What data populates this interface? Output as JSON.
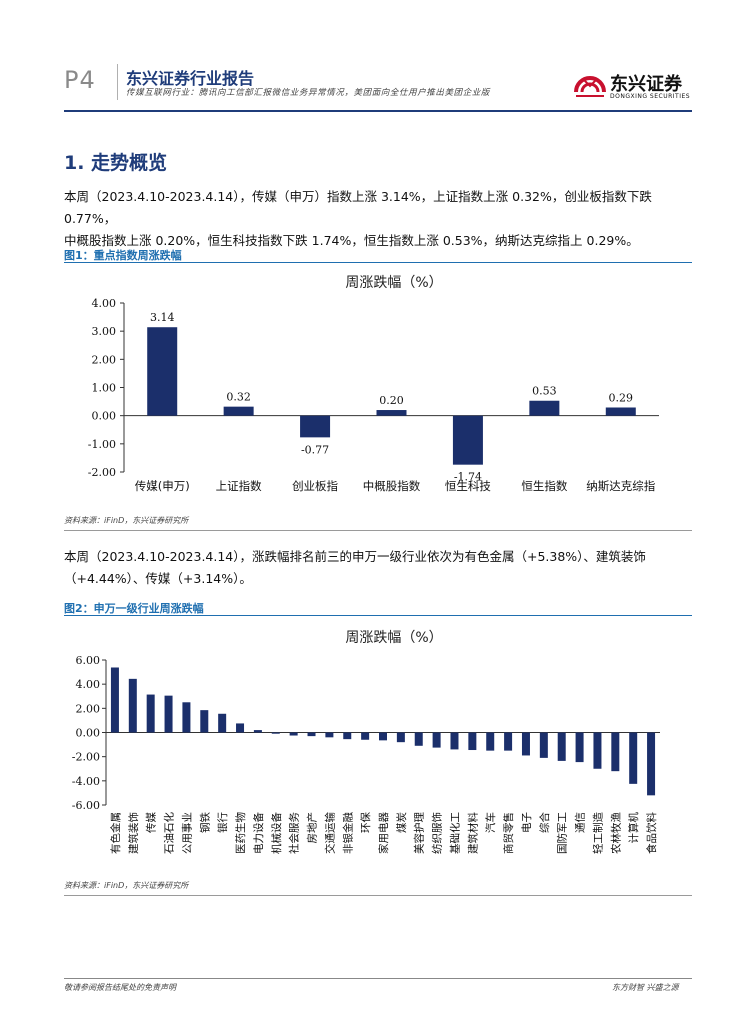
{
  "header": {
    "page": "P4",
    "company": "东兴证券行业报告",
    "subtitle": "传媒互联网行业：腾讯向工信部汇报微信业务异常情况，美团面向全仕用户推出美团企业版",
    "logo_cn": "东兴证券",
    "logo_en": "DONGXING SECURITIES",
    "brand_color": "#1f3c7a"
  },
  "section": {
    "title": "1. 走势概览"
  },
  "paragraphs": {
    "p1_line1": "本周（2023.4.10-2023.4.14），传媒（申万）指数上涨 3.14%，上证指数上涨 0.32%，创业板指数下跌 0.77%，",
    "p1_line2": "中概股指数上涨 0.20%，恒生科技指数下跌 1.74%，恒生指数上涨 0.53%，纳斯达克综指上 0.29%。",
    "p2_line1": "本周（2023.4.10-2023.4.14），涨跌幅排名前三的申万一级行业依次为有色金属（+5.38%）、建筑装饰",
    "p2_line2": "（+4.44%）、传媒（+3.14%）。"
  },
  "figures": {
    "fig1_caption": "图1：重点指数周涨跌幅",
    "fig1_source": "资料来源：iFinD，东兴证券研究所",
    "fig2_caption": "图2：申万一级行业周涨跌幅",
    "fig2_source": "资料来源：iFinD，东兴证券研究所"
  },
  "chart_data": [
    {
      "type": "bar",
      "title": "周涨跌幅（%）",
      "categories": [
        "传媒(申万)",
        "上证指数",
        "创业板指",
        "中概股指数",
        "恒生科技",
        "恒生指数",
        "纳斯达克综指"
      ],
      "values": [
        3.14,
        0.32,
        -0.77,
        0.2,
        -1.74,
        0.53,
        0.29
      ],
      "labels": [
        "3.14",
        "0.32",
        "-0.77",
        "0.20",
        "-1.74",
        "0.53",
        "0.29"
      ],
      "yticks": [
        "4.00",
        "3.00",
        "2.00",
        "1.00",
        "0.00",
        "-1.00",
        "-2.00"
      ],
      "ylim": [
        -2,
        4
      ],
      "color": "#1b2f6b",
      "xlabel": "",
      "ylabel": ""
    },
    {
      "type": "bar",
      "title": "周涨跌幅（%）",
      "categories": [
        "有色金属",
        "建筑装饰",
        "传媒",
        "石油石化",
        "公用事业",
        "钢铁",
        "银行",
        "医药生物",
        "电力设备",
        "机械设备",
        "社会服务",
        "房地产",
        "交通运输",
        "非银金融",
        "环保",
        "家用电器",
        "煤炭",
        "美容护理",
        "纺织服饰",
        "基础化工",
        "建筑材料",
        "汽车",
        "商贸零售",
        "电子",
        "综合",
        "国防军工",
        "通信",
        "轻工制造",
        "农林牧渔",
        "计算机",
        "食品饮料"
      ],
      "values": [
        5.38,
        4.44,
        3.14,
        3.05,
        2.5,
        1.85,
        1.55,
        0.75,
        0.2,
        -0.1,
        -0.25,
        -0.3,
        -0.4,
        -0.55,
        -0.6,
        -0.65,
        -0.8,
        -1.1,
        -1.25,
        -1.4,
        -1.45,
        -1.5,
        -1.5,
        -1.9,
        -2.1,
        -2.35,
        -2.45,
        -3.0,
        -3.2,
        -4.25,
        -5.2
      ],
      "yticks": [
        "6.00",
        "4.00",
        "2.00",
        "0.00",
        "-2.00",
        "-4.00",
        "-6.00"
      ],
      "ylim": [
        -6,
        6
      ],
      "color": "#1b2f6b",
      "xlabel": "",
      "ylabel": ""
    }
  ],
  "footer": {
    "left": "敬请参阅报告结尾处的免责声明",
    "right": "东方财智 兴盛之源"
  }
}
